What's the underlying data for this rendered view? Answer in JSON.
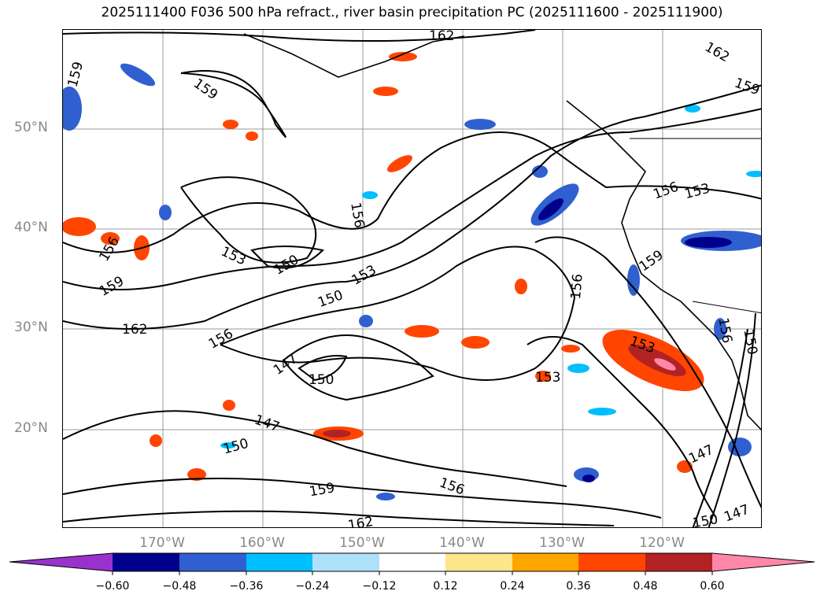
{
  "title": "2025111400 F036 500 hPa refract., river basin precipitation PC (2025111600 - 2025111900)",
  "map": {
    "lat_labels": [
      "50°N",
      "40°N",
      "30°N",
      "20°N"
    ],
    "lon_labels": [
      "170°W",
      "160°W",
      "150°W",
      "140°W",
      "130°W",
      "120°W"
    ],
    "contour_labels": [
      "162",
      "159",
      "159",
      "156",
      "153",
      "150",
      "156",
      "153",
      "150",
      "159",
      "162",
      "156",
      "147",
      "150",
      "147",
      "150",
      "159",
      "156",
      "162",
      "153",
      "156",
      "153",
      "159",
      "156",
      "156",
      "153",
      "147",
      "150",
      "147",
      "150",
      "162",
      "159"
    ],
    "contour_levels": [
      147,
      150,
      153,
      156,
      159,
      162
    ]
  },
  "colorbar": {
    "tick_labels": [
      "−0.60",
      "−0.48",
      "−0.36",
      "−0.24",
      "−0.12",
      "0.12",
      "0.24",
      "0.36",
      "0.48",
      "0.60"
    ],
    "colors": [
      "#9932cc",
      "#00008b",
      "#3060d0",
      "#00bfff",
      "#aee0fa",
      "#ffffff",
      "#fde68a",
      "#ffa500",
      "#ff4500",
      "#b22222",
      "#ff88aa"
    ]
  }
}
